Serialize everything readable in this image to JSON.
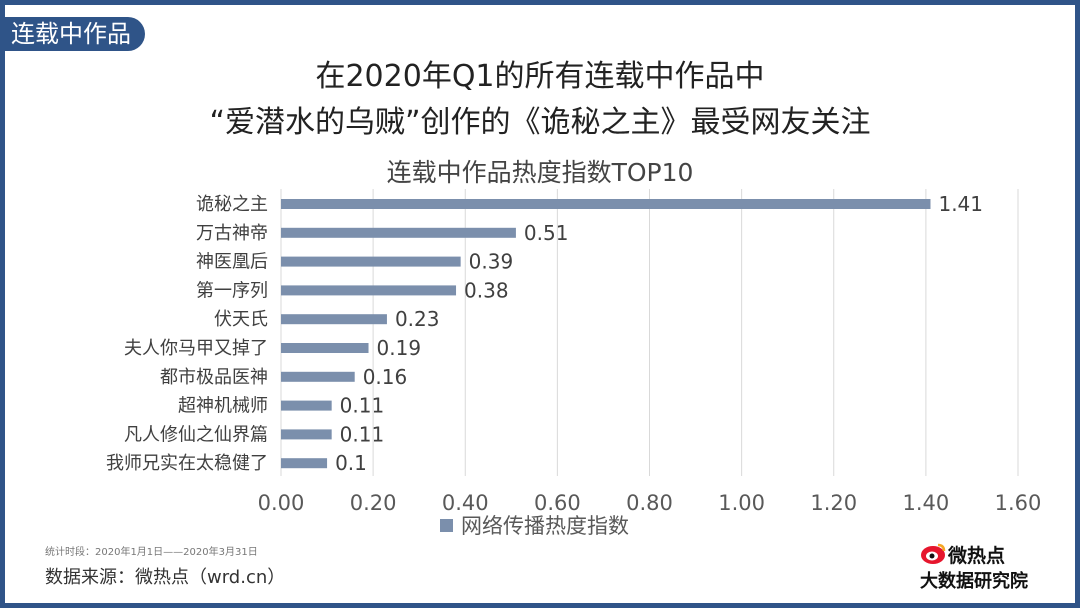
{
  "header": {
    "tag": "连载中作品",
    "headline_line1": "在2020年Q1的所有连载中作品中",
    "headline_line2": "“爱潜水的乌贼”创作的《诡秘之主》最受网友关注"
  },
  "colors": {
    "frame": "#2f5488",
    "bar": "#7b8fac",
    "grid": "#d9d9d9"
  },
  "footer": {
    "period_note": "统计时段：2020年1月1日——2020年3月31日",
    "source": "数据来源：微热点（wrd.cn）",
    "logo_top": "微热点",
    "logo_bottom": "大数据研究院",
    "logo_icon": "weibo-eye-icon"
  },
  "chart_data": {
    "type": "bar",
    "orientation": "horizontal",
    "title": "连载中作品热度指数TOP10",
    "categories": [
      "诡秘之主",
      "万古神帝",
      "神医凰后",
      "第一序列",
      "伏天氏",
      "夫人你马甲又掉了",
      "都市极品医神",
      "超神机械师",
      "凡人修仙之仙界篇",
      "我师兄实在太稳健了"
    ],
    "series": [
      {
        "name": "网络传播热度指数",
        "values": [
          1.41,
          0.51,
          0.39,
          0.38,
          0.23,
          0.19,
          0.16,
          0.11,
          0.11,
          0.1
        ],
        "value_labels": [
          "1.41",
          "0.51",
          "0.39",
          "0.38",
          "0.23",
          "0.19",
          "0.16",
          "0.11",
          "0.11",
          "0.1"
        ]
      }
    ],
    "xlim": [
      0,
      1.6
    ],
    "xticks": [
      "0.00",
      "0.20",
      "0.40",
      "0.60",
      "0.80",
      "1.00",
      "1.20",
      "1.40",
      "1.60"
    ],
    "grid": true,
    "legend_position": "bottom"
  }
}
